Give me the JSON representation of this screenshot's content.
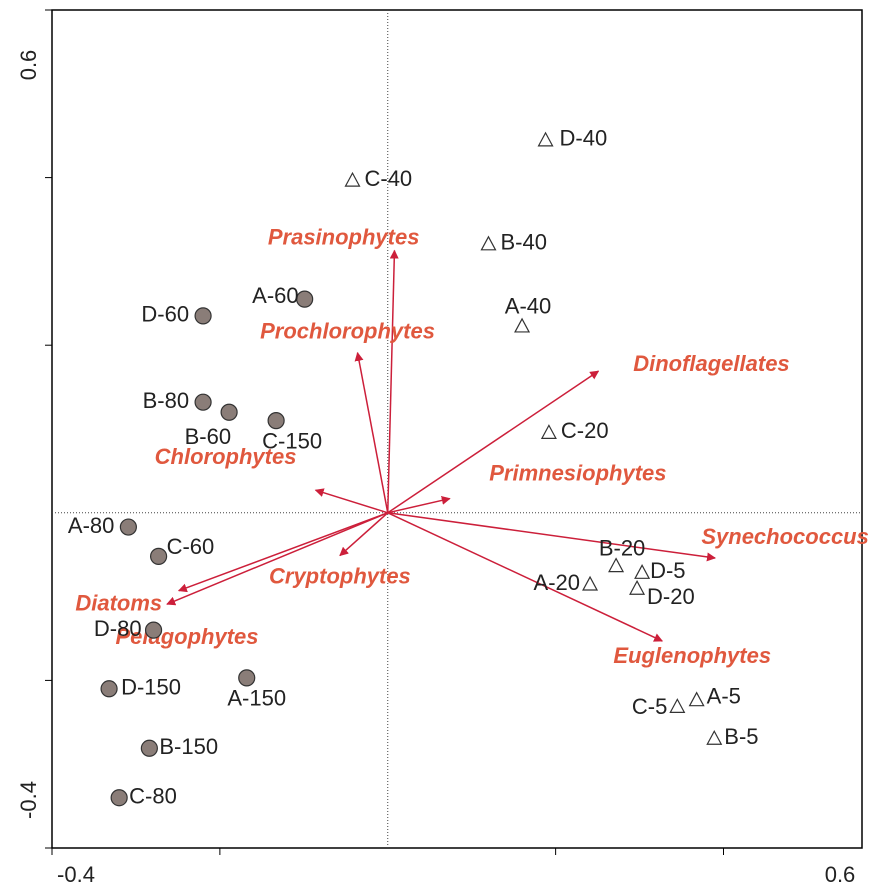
{
  "chart_data": {
    "type": "biplot",
    "xlim": [
      -0.4,
      0.565
    ],
    "ylim": [
      -0.4,
      0.6
    ],
    "xticks": [
      -0.4,
      0.6
    ],
    "yticks": [
      -0.4,
      0.6
    ],
    "minor_xticks": [
      -0.2,
      0.2,
      0.4
    ],
    "minor_yticks": [
      -0.2,
      0.2,
      0.4
    ],
    "series": [
      {
        "marker": "circle",
        "color": "#8a7d78",
        "labels": [
          "A-60",
          "D-60",
          "B-80",
          "B-60",
          "C-150",
          "A-80",
          "C-60",
          "D-80",
          "D-150",
          "A-150",
          "B-150",
          "C-80"
        ],
        "x": [
          -0.099,
          -0.22,
          -0.22,
          -0.189,
          -0.133,
          -0.309,
          -0.273,
          -0.279,
          -0.332,
          -0.168,
          -0.284,
          -0.32
        ],
        "values": [
          0.255,
          0.235,
          0.132,
          0.12,
          0.11,
          -0.017,
          -0.052,
          -0.14,
          -0.21,
          -0.197,
          -0.281,
          -0.34
        ]
      },
      {
        "marker": "triangle",
        "color": "#ffffff",
        "labels": [
          "D-40",
          "C-40",
          "B-40",
          "A-40",
          "C-20",
          "B-20",
          "D-5",
          "D-20",
          "A-20",
          "C-5",
          "A-5",
          "B-5"
        ],
        "x": [
          0.188,
          -0.042,
          0.12,
          0.16,
          0.192,
          0.272,
          0.303,
          0.297,
          0.241,
          0.345,
          0.368,
          0.389
        ],
        "values": [
          0.445,
          0.397,
          0.321,
          0.223,
          0.096,
          -0.063,
          -0.071,
          -0.09,
          -0.085,
          -0.231,
          -0.223,
          -0.269
        ]
      }
    ],
    "vectors": {
      "color": "#cc1f3a",
      "label_color": "#e0583e",
      "labels": [
        "Prasinophytes",
        "Prochlorophytes",
        "Dinoflagellates",
        "Chlorophytes",
        "Primnesiophytes",
        "Synechococcus",
        "Euglenophytes",
        "Cryptophytes",
        "Diatoms",
        "Pelagophytes"
      ],
      "x": [
        0.008,
        -0.036,
        0.251,
        -0.086,
        0.074,
        0.39,
        0.327,
        -0.057,
        -0.249,
        -0.263
      ],
      "y": [
        0.313,
        0.191,
        0.169,
        0.027,
        0.017,
        -0.054,
        -0.153,
        -0.051,
        -0.093,
        -0.109
      ]
    }
  }
}
